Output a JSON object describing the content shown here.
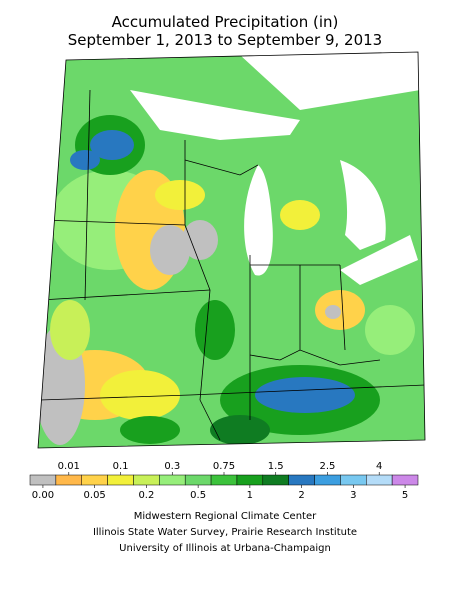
{
  "header": {
    "title": "Accumulated Precipitation (in)",
    "subtitle": "September 1, 2013 to September 9, 2013"
  },
  "legend": {
    "bins": [
      {
        "label": "0.00",
        "color": "#c0c0c0"
      },
      {
        "label": "0.01",
        "color": "#ffb84a"
      },
      {
        "label": "0.05",
        "color": "#ffd24a"
      },
      {
        "label": "0.1",
        "color": "#f2f03a"
      },
      {
        "label": "0.2",
        "color": "#c8f058"
      },
      {
        "label": "0.3",
        "color": "#96ee7a"
      },
      {
        "label": "0.5",
        "color": "#6cd86a"
      },
      {
        "label": "0.75",
        "color": "#3cc23c"
      },
      {
        "label": "1",
        "color": "#18a01e"
      },
      {
        "label": "1.5",
        "color": "#0f7c22"
      },
      {
        "label": "2",
        "color": "#2878c0"
      },
      {
        "label": "2.5",
        "color": "#3c9ee0"
      },
      {
        "label": "3",
        "color": "#78c8f0"
      },
      {
        "label": "4",
        "color": "#b4dcf8"
      },
      {
        "label": "5",
        "color": "#cc88e8"
      }
    ]
  },
  "credits": [
    "Midwestern Regional Climate Center",
    "Illinois State Water Survey, Prairie Research Institute",
    "University of Illinois at Urbana-Champaign"
  ]
}
